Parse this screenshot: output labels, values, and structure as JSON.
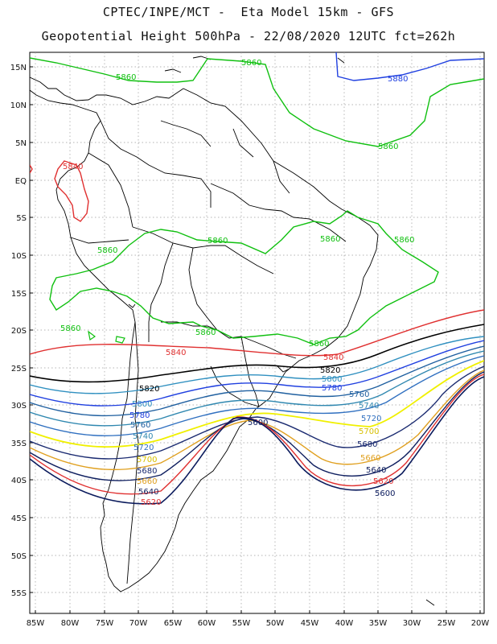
{
  "title": {
    "line1": "CPTEC/INPE/MCT -  Eta Model 15km - GFS",
    "line2": "Geopotential Height 500hPa - 22/08/2020 12UTC fct=262h"
  },
  "axes": {
    "lat_labels": [
      "15N",
      "10N",
      "5N",
      "EQ",
      "5S",
      "10S",
      "15S",
      "20S",
      "25S",
      "30S",
      "35S",
      "40S",
      "45S",
      "50S",
      "55S"
    ],
    "lon_labels": [
      "85W",
      "80W",
      "75W",
      "70W",
      "65W",
      "60W",
      "55W",
      "50W",
      "45W",
      "40W",
      "35W",
      "30W",
      "25W",
      "20W"
    ]
  },
  "contours": [
    {
      "level": 5600,
      "label": "5600",
      "color": "#0a1a5c"
    },
    {
      "level": 5620,
      "label": "5620",
      "color": "#e03030"
    },
    {
      "level": 5640,
      "label": "5640",
      "color": "#102060"
    },
    {
      "level": 5660,
      "label": "5660",
      "color": "#e0a020"
    },
    {
      "level": 5680,
      "label": "5680",
      "color": "#1a2a70"
    },
    {
      "level": 5700,
      "label": "5700",
      "color": "#f0f000"
    },
    {
      "level": 5720,
      "label": "5720",
      "color": "#3070c0"
    },
    {
      "level": 5740,
      "label": "5740",
      "color": "#3088b0"
    },
    {
      "level": 5760,
      "label": "5760",
      "color": "#2060a0"
    },
    {
      "level": 5780,
      "label": "5780",
      "color": "#2040e0"
    },
    {
      "level": 5800,
      "label": "5800",
      "color": "#3090c0"
    },
    {
      "level": 5820,
      "label": "5820",
      "color": "#000000"
    },
    {
      "level": 5840,
      "label": "5840",
      "color": "#e03030"
    },
    {
      "level": 5860,
      "label": "5860",
      "color": "#10c010"
    },
    {
      "level": 5880,
      "label": "5880",
      "color": "#2040e0"
    }
  ],
  "labels": {
    "l5860": "5860",
    "l5880": "5880",
    "l5840": "5840",
    "l5820": "5820"
  }
}
